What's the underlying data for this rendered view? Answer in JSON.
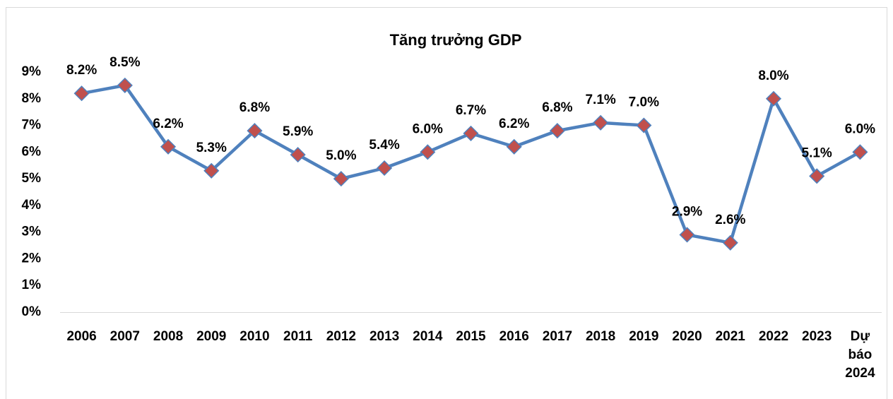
{
  "chart_data": {
    "type": "line",
    "title": "Tăng trưởng GDP",
    "categories": [
      "2006",
      "2007",
      "2008",
      "2009",
      "2010",
      "2011",
      "2012",
      "2013",
      "2014",
      "2015",
      "2016",
      "2017",
      "2018",
      "2019",
      "2020",
      "2021",
      "2022",
      "2023",
      "Dự báo 2024"
    ],
    "series": [
      {
        "name": "Tăng trưởng GDP",
        "color": "#4f81bd",
        "marker_color": "#c0504d",
        "values": [
          8.2,
          8.5,
          6.2,
          5.3,
          6.8,
          5.9,
          5.0,
          5.4,
          6.0,
          6.7,
          6.2,
          6.8,
          7.1,
          7.0,
          2.9,
          2.6,
          8.0,
          5.1,
          6.0
        ],
        "value_labels": [
          "8.2%",
          "8.5%",
          "6.2%",
          "5.3%",
          "6.8%",
          "5.9%",
          "5.0%",
          "5.4%",
          "6.0%",
          "6.7%",
          "6.2%",
          "6.8%",
          "7.1%",
          "7.0%",
          "2.9%",
          "2.6%",
          "8.0%",
          "5.1%",
          "6.0%"
        ]
      }
    ],
    "ylim": [
      0,
      9
    ],
    "yticks": [
      {
        "value": 0,
        "label": "0%"
      },
      {
        "value": 1,
        "label": "1%"
      },
      {
        "value": 2,
        "label": "2%"
      },
      {
        "value": 3,
        "label": "3%"
      },
      {
        "value": 4,
        "label": "4%"
      },
      {
        "value": 5,
        "label": "5%"
      },
      {
        "value": 6,
        "label": "6%"
      },
      {
        "value": 7,
        "label": "7%"
      },
      {
        "value": 8,
        "label": "8%"
      },
      {
        "value": 9,
        "label": "9%"
      }
    ],
    "grid": false
  }
}
